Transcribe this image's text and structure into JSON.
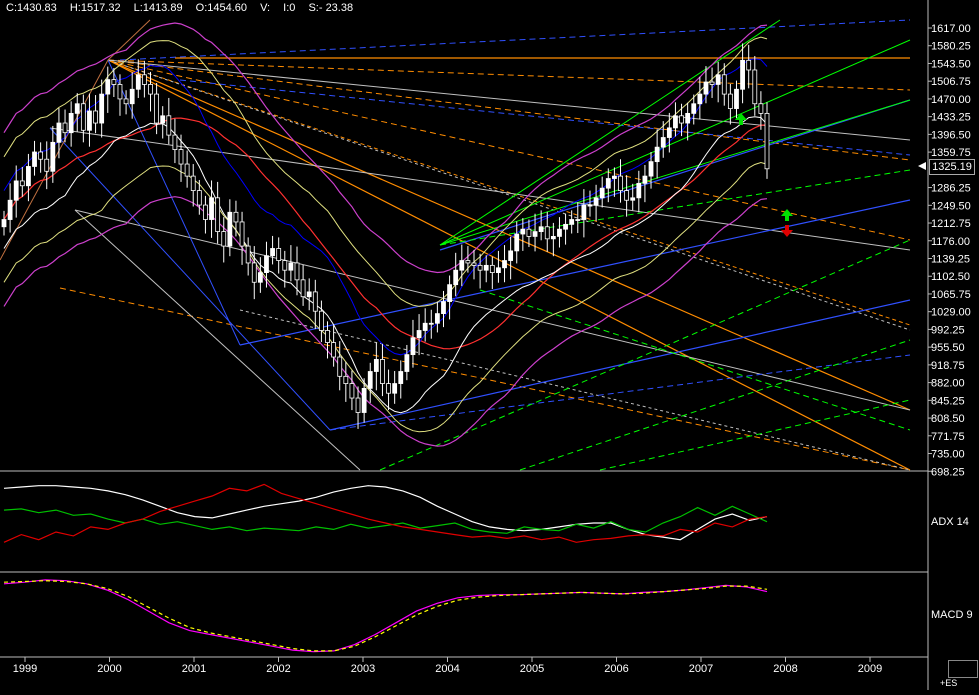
{
  "header": {
    "close": "C:1430.83",
    "high": "H:1517.32",
    "low": "L:1413.89",
    "open": "O:1454.60",
    "volume": "V:",
    "oi": "I:0",
    "s": "S:- 23.38"
  },
  "last_price": "1325.19",
  "symbol": "+ES",
  "panels": {
    "adx_label": "ADX 14",
    "macd_label": "MACD 9"
  },
  "colors": {
    "up_candle": "#ffffff",
    "down_candle": "#000000",
    "adx": "#ffffff",
    "di_plus": "#00c000",
    "di_minus": "#e00000",
    "macd": "#ff00ff",
    "signal": "#ffff00",
    "bollinger_mid": "#ff3030",
    "bollinger_outer": "#ffffff",
    "bollinger_inner": "#0000ff",
    "fan_orange": "#ff8c00",
    "fan_green": "#00ff00",
    "fan_blue": "#3050ff",
    "fan_gray": "#c0c0c0"
  },
  "chart_data": [
    {
      "type": "candlestick",
      "title": "",
      "x_labels": [
        "1999",
        "2000",
        "2001",
        "2002",
        "2003",
        "2004",
        "2005",
        "2006",
        "2007",
        "2008",
        "2009"
      ],
      "y_ticks": [
        "1617.00",
        "1580.25",
        "1543.50",
        "1506.75",
        "1470.00",
        "1433.25",
        "1396.50",
        "1359.75",
        "1286.25",
        "1249.50",
        "1212.75",
        "1176.00",
        "1139.25",
        "1102.50",
        "1065.75",
        "1029.00",
        "992.25",
        "955.50",
        "918.75",
        "882.00",
        "845.25",
        "808.50",
        "771.75",
        "735.00",
        "698.25"
      ],
      "ylim": [
        698.25,
        1617.0
      ],
      "closes": [
        1220,
        1260,
        1300,
        1290,
        1330,
        1360,
        1345,
        1320,
        1380,
        1420,
        1400,
        1440,
        1460,
        1405,
        1445,
        1420,
        1480,
        1510,
        1500,
        1470,
        1460,
        1490,
        1520,
        1500,
        1480,
        1420,
        1435,
        1395,
        1365,
        1335,
        1310,
        1280,
        1250,
        1220,
        1265,
        1195,
        1165,
        1235,
        1215,
        1165,
        1130,
        1090,
        1110,
        1145,
        1160,
        1135,
        1115,
        1130,
        1095,
        1060,
        1070,
        1030,
        990,
        965,
        935,
        895,
        880,
        850,
        820,
        870,
        905,
        930,
        880,
        860,
        880,
        905,
        940,
        975,
        990,
        1005,
        1005,
        1025,
        1050,
        1085,
        1115,
        1135,
        1130,
        1125,
        1115,
        1125,
        1110,
        1120,
        1135,
        1155,
        1190,
        1200,
        1185,
        1195,
        1205,
        1180,
        1185,
        1200,
        1210,
        1220,
        1220,
        1250,
        1250,
        1265,
        1285,
        1305,
        1310,
        1280,
        1260,
        1265,
        1295,
        1310,
        1340,
        1370,
        1390,
        1410,
        1435,
        1420,
        1440,
        1460,
        1480,
        1505,
        1500,
        1520,
        1480,
        1450,
        1490,
        1550,
        1530,
        1460,
        1440,
        1325.19
      ]
    },
    {
      "type": "line",
      "title": "ADX 14",
      "series": [
        {
          "name": "ADX",
          "values": [
            62,
            63,
            64,
            64,
            63,
            62,
            60,
            57,
            53,
            48,
            43,
            40,
            39,
            42,
            45,
            48,
            50,
            52,
            55,
            59,
            62,
            64,
            63,
            60,
            55,
            48,
            42,
            36,
            32,
            30,
            29,
            30,
            32,
            34,
            35,
            35,
            30,
            26,
            24,
            22,
            30,
            38,
            42,
            37,
            40
          ]
        },
        {
          "name": "+DI",
          "values": [
            45,
            46,
            43,
            45,
            41,
            42,
            38,
            35,
            38,
            34,
            36,
            33,
            30,
            32,
            29,
            31,
            30,
            29,
            32,
            30,
            34,
            31,
            33,
            35,
            31,
            33,
            35,
            30,
            28,
            27,
            32,
            30,
            29,
            34,
            31,
            36,
            30,
            28,
            35,
            40,
            47,
            41,
            48,
            42,
            36
          ]
        },
        {
          "name": "-DI",
          "values": [
            20,
            26,
            22,
            28,
            25,
            32,
            30,
            35,
            38,
            44,
            48,
            52,
            56,
            62,
            60,
            65,
            58,
            54,
            50,
            46,
            42,
            38,
            35,
            32,
            30,
            28,
            26,
            24,
            25,
            23,
            25,
            22,
            24,
            20,
            22,
            23,
            25,
            26,
            25,
            30,
            28,
            35,
            32,
            38,
            40
          ]
        }
      ]
    },
    {
      "type": "line",
      "title": "MACD 9",
      "series": [
        {
          "name": "MACD",
          "values": [
            90,
            92,
            95,
            94,
            90,
            82,
            70,
            55,
            40,
            30,
            25,
            20,
            15,
            10,
            5,
            3,
            4,
            12,
            25,
            40,
            55,
            65,
            72,
            75,
            76,
            76,
            77,
            78,
            79,
            78,
            77,
            79,
            80,
            82,
            85,
            88,
            86,
            80
          ]
        },
        {
          "name": "Signal",
          "values": [
            92,
            93,
            94,
            93,
            90,
            84,
            74,
            60,
            46,
            34,
            27,
            22,
            17,
            12,
            7,
            4,
            4,
            10,
            22,
            36,
            50,
            61,
            69,
            73,
            75,
            76,
            77,
            78,
            79,
            78,
            77,
            78,
            80,
            82,
            84,
            87,
            87,
            83
          ]
        }
      ]
    }
  ]
}
